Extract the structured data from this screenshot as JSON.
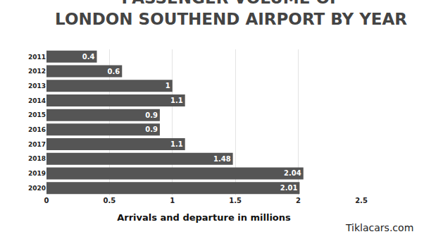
{
  "chart_data": {
    "type": "bar",
    "orientation": "horizontal",
    "title": "PASSENGER VOLUME OF\nLONDON SOUTHEND AIRPORT BY YEAR",
    "x_label": "Arrivals and departure in millions",
    "categories": [
      "2011",
      "2012",
      "2013",
      "2014",
      "2015",
      "2016",
      "2017",
      "2018",
      "2019",
      "2020"
    ],
    "values": [
      0.4,
      0.6,
      1,
      1.1,
      0.9,
      0.9,
      1.1,
      1.48,
      2.04,
      2.01
    ],
    "color": "#555555",
    "xlim": [
      0,
      2.5
    ],
    "xticks": [
      0,
      0.5,
      1,
      1.5,
      2,
      2.5
    ],
    "grid": true,
    "data_labels": true,
    "annotations": [
      "Tiklacars.com"
    ]
  }
}
